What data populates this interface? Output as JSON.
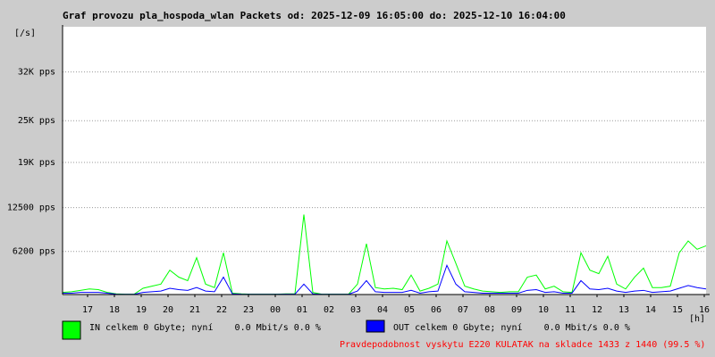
{
  "chart_data": {
    "type": "line",
    "title": "Graf provozu pla_hospoda_wlan Packets od: 2025-12-09 16:05:00 do: 2025-12-10 16:04:00",
    "y_unit_label": "[/s]",
    "x_unit_label": "[h]",
    "xticks": [
      "17",
      "18",
      "19",
      "20",
      "21",
      "22",
      "23",
      "00",
      "01",
      "02",
      "03",
      "04",
      "05",
      "06",
      "07",
      "08",
      "09",
      "10",
      "11",
      "12",
      "13",
      "14",
      "15",
      "16"
    ],
    "ylim": [
      0,
      38500
    ],
    "yticks": [
      {
        "value": 6200,
        "label": "6200 pps"
      },
      {
        "value": 12500,
        "label": "12500 pps"
      },
      {
        "value": 19000,
        "label": "19K pps"
      },
      {
        "value": 25000,
        "label": "25K pps"
      },
      {
        "value": 32000,
        "label": "32K pps"
      }
    ],
    "grid": true,
    "series": [
      {
        "name": "IN celkem 0 Gbyte; nyní    0.0 Mbit/s 0.0 %",
        "color": "#00ff00",
        "values": [
          300,
          400,
          600,
          800,
          700,
          300,
          100,
          50,
          50,
          900,
          1200,
          1500,
          3500,
          2500,
          2000,
          5300,
          1500,
          1000,
          6000,
          200,
          100,
          50,
          50,
          50,
          50,
          100,
          100,
          11500,
          300,
          50,
          50,
          50,
          50,
          1500,
          7300,
          1000,
          800,
          900,
          700,
          2800,
          500,
          900,
          1500,
          7700,
          4500,
          1200,
          800,
          500,
          400,
          300,
          400,
          400,
          2500,
          2800,
          800,
          1200,
          400,
          300,
          6000,
          3500,
          3000,
          5500,
          1500,
          800,
          2500,
          3800,
          1000,
          1000,
          1200,
          6000,
          7700,
          6500,
          7000
        ]
      },
      {
        "name": "OUT celkem 0 Gbyte; nyní    0.0 Mbit/s 0.0 %",
        "color": "#0000ff",
        "values": [
          200,
          200,
          300,
          300,
          300,
          200,
          50,
          30,
          30,
          300,
          400,
          500,
          900,
          700,
          600,
          1000,
          500,
          400,
          2500,
          100,
          50,
          30,
          30,
          30,
          30,
          50,
          50,
          1500,
          100,
          30,
          30,
          30,
          30,
          500,
          2000,
          400,
          300,
          300,
          300,
          600,
          200,
          400,
          500,
          4200,
          1500,
          400,
          300,
          200,
          200,
          200,
          200,
          200,
          600,
          700,
          300,
          400,
          200,
          200,
          2000,
          800,
          700,
          900,
          500,
          300,
          500,
          600,
          300,
          400,
          500,
          900,
          1300,
          1000,
          800
        ]
      }
    ],
    "footer_note": "Pravdepodobnost vyskytu E220 KULATAK na skladce 1433 z 1440 (99.5 %)"
  }
}
